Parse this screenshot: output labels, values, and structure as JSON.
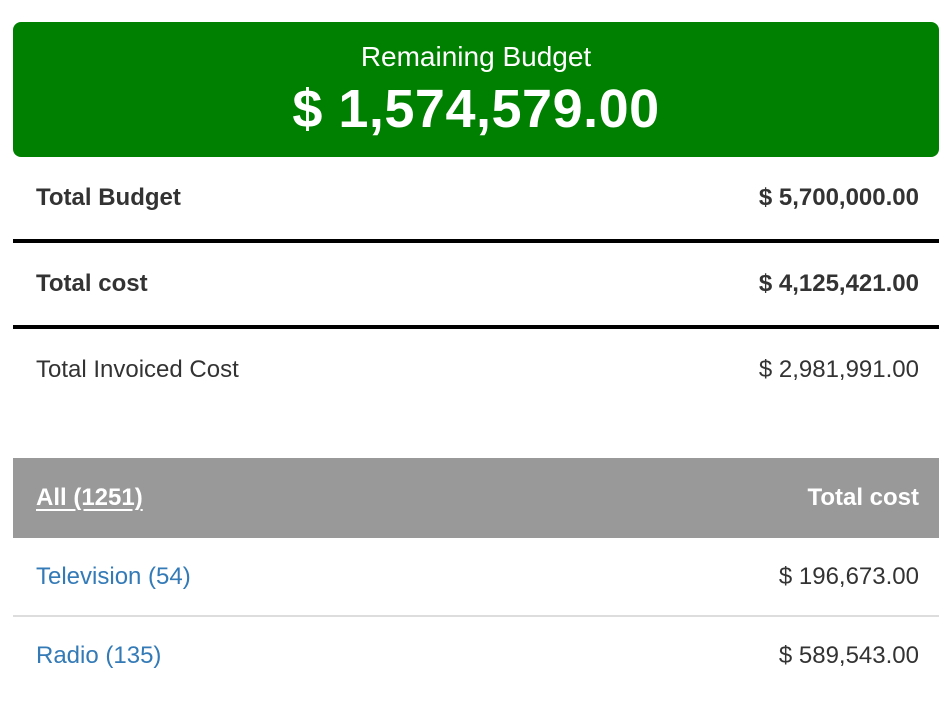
{
  "summary_card": {
    "title": "Remaining Budget",
    "amount": "$ 1,574,579.00",
    "bg_color": "#008000",
    "text_color": "#ffffff"
  },
  "summary_rows": [
    {
      "label": "Total Budget",
      "value": "$ 5,700,000.00",
      "bold": true
    },
    {
      "label": "Total cost",
      "value": "$ 4,125,421.00",
      "bold": true
    },
    {
      "label": "Total Invoiced Cost",
      "value": "$ 2,981,991.00",
      "bold": false
    }
  ],
  "table": {
    "header": {
      "all_filter_label": "All (1251)",
      "cost_column_label": "Total cost",
      "bg_color": "#999999",
      "text_color": "#ffffff"
    },
    "rows": [
      {
        "label": "Television (54)",
        "count": 54,
        "value": "$ 196,673.00"
      },
      {
        "label": "Radio (135)",
        "count": 135,
        "value": "$ 589,543.00"
      }
    ]
  },
  "colors": {
    "accent_green": "#008000",
    "header_gray": "#999999",
    "link_blue": "#337ab7",
    "text_dark": "#333333",
    "divider_black": "#000000",
    "divider_light": "#dddddd"
  }
}
